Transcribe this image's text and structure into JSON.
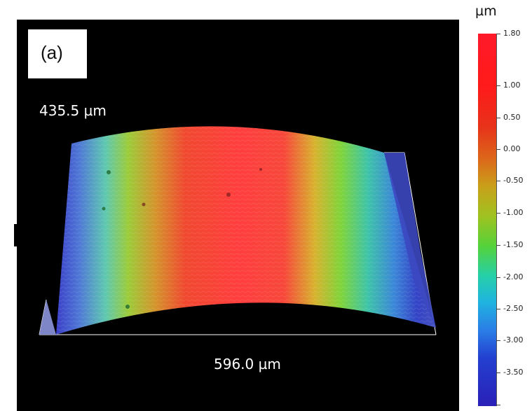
{
  "figure": {
    "panel_label": "(a)",
    "height_dimension": "435.5 µm",
    "width_dimension": "596.0 µm"
  },
  "colorbar": {
    "unit": "µm",
    "tick_labels": [
      "1.80",
      "1.00",
      "0.50",
      "0.00",
      "-0.50",
      "-1.00",
      "-1.50",
      "-2.00",
      "-2.50",
      "-3.00",
      "-3.50"
    ]
  },
  "colors": {
    "background": "#000000",
    "surface_high": "#ff2a2a",
    "surface_mid": "#3ad23a",
    "surface_low": "#2a2ab8"
  }
}
